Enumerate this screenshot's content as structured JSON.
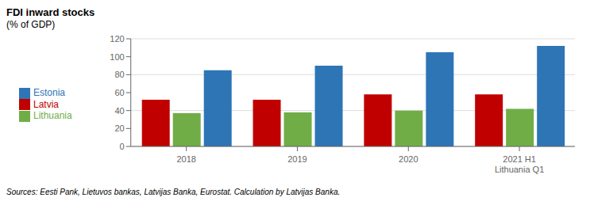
{
  "chart_data": {
    "type": "bar",
    "title": "FDI inward stocks",
    "subtitle": "(% of GDP)",
    "categories": [
      "2018",
      "2019",
      "2020",
      "2021 H1\nLithuania Q1"
    ],
    "series": [
      {
        "name": "Latvia",
        "color": "#c00000",
        "values": [
          52,
          52,
          58,
          58
        ]
      },
      {
        "name": "Lithuania",
        "color": "#70ad47",
        "values": [
          37,
          38,
          40,
          42
        ]
      },
      {
        "name": "Estonia",
        "color": "#2e75b6",
        "values": [
          85,
          90,
          105,
          112
        ]
      }
    ],
    "ylim": [
      0,
      120
    ],
    "yticks": [
      0,
      20,
      40,
      60,
      80,
      100,
      120
    ],
    "grid": true,
    "legend": "left",
    "footnote": "Sources: Eesti Pank, Lietuvos bankas, Latvijas Banka, Eurostat. Calculation by Latvijas Banka."
  }
}
